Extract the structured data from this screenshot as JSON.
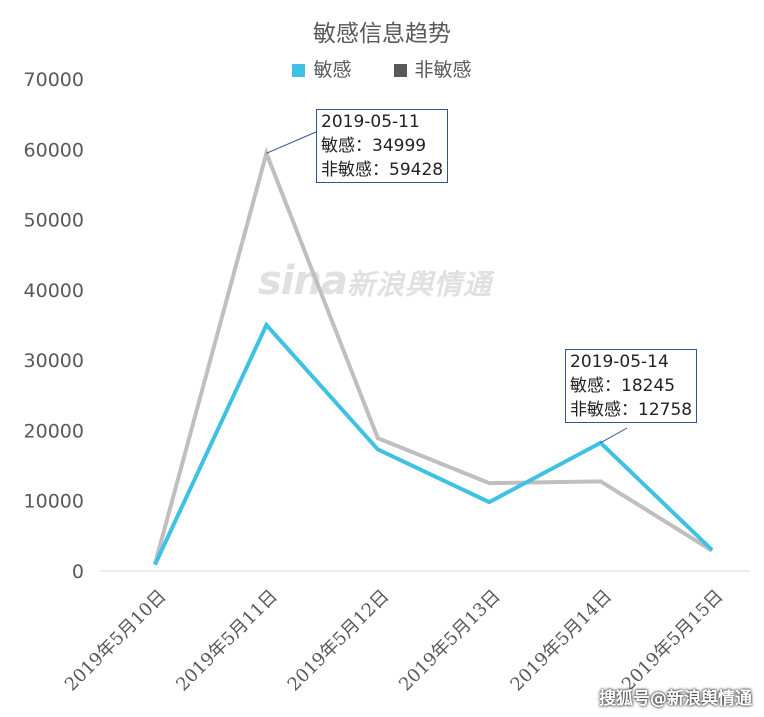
{
  "chart_data": {
    "type": "line",
    "title": "敏感信息趋势",
    "categories": [
      "2019年5月10日",
      "2019年5月11日",
      "2019年5月12日",
      "2019年5月13日",
      "2019年5月14日",
      "2019年5月15日"
    ],
    "series": [
      {
        "name": "敏感",
        "color": "#3ec1e3",
        "values": [
          900,
          34999,
          17300,
          9800,
          18245,
          3000
        ]
      },
      {
        "name": "非敏感",
        "color": "#bfbfbf",
        "legend_color": "#595959",
        "values": [
          1000,
          59428,
          18900,
          12500,
          12758,
          2900
        ]
      }
    ],
    "ylim": [
      0,
      70000
    ],
    "yticks": [
      "0",
      "10000",
      "20000",
      "30000",
      "40000",
      "50000",
      "60000",
      "70000"
    ],
    "grid": false,
    "legend": "top",
    "annotations": [
      {
        "lines": [
          "2019-05-11",
          "敏感：34999",
          "非敏感：59428"
        ]
      },
      {
        "lines": [
          "2019-05-14",
          "敏感：18245",
          "非敏感：12758"
        ]
      }
    ]
  },
  "watermark": {
    "latin": "sina",
    "cn": "新浪舆情通"
  },
  "footer_mark": "搜狐号@新浪舆情通"
}
